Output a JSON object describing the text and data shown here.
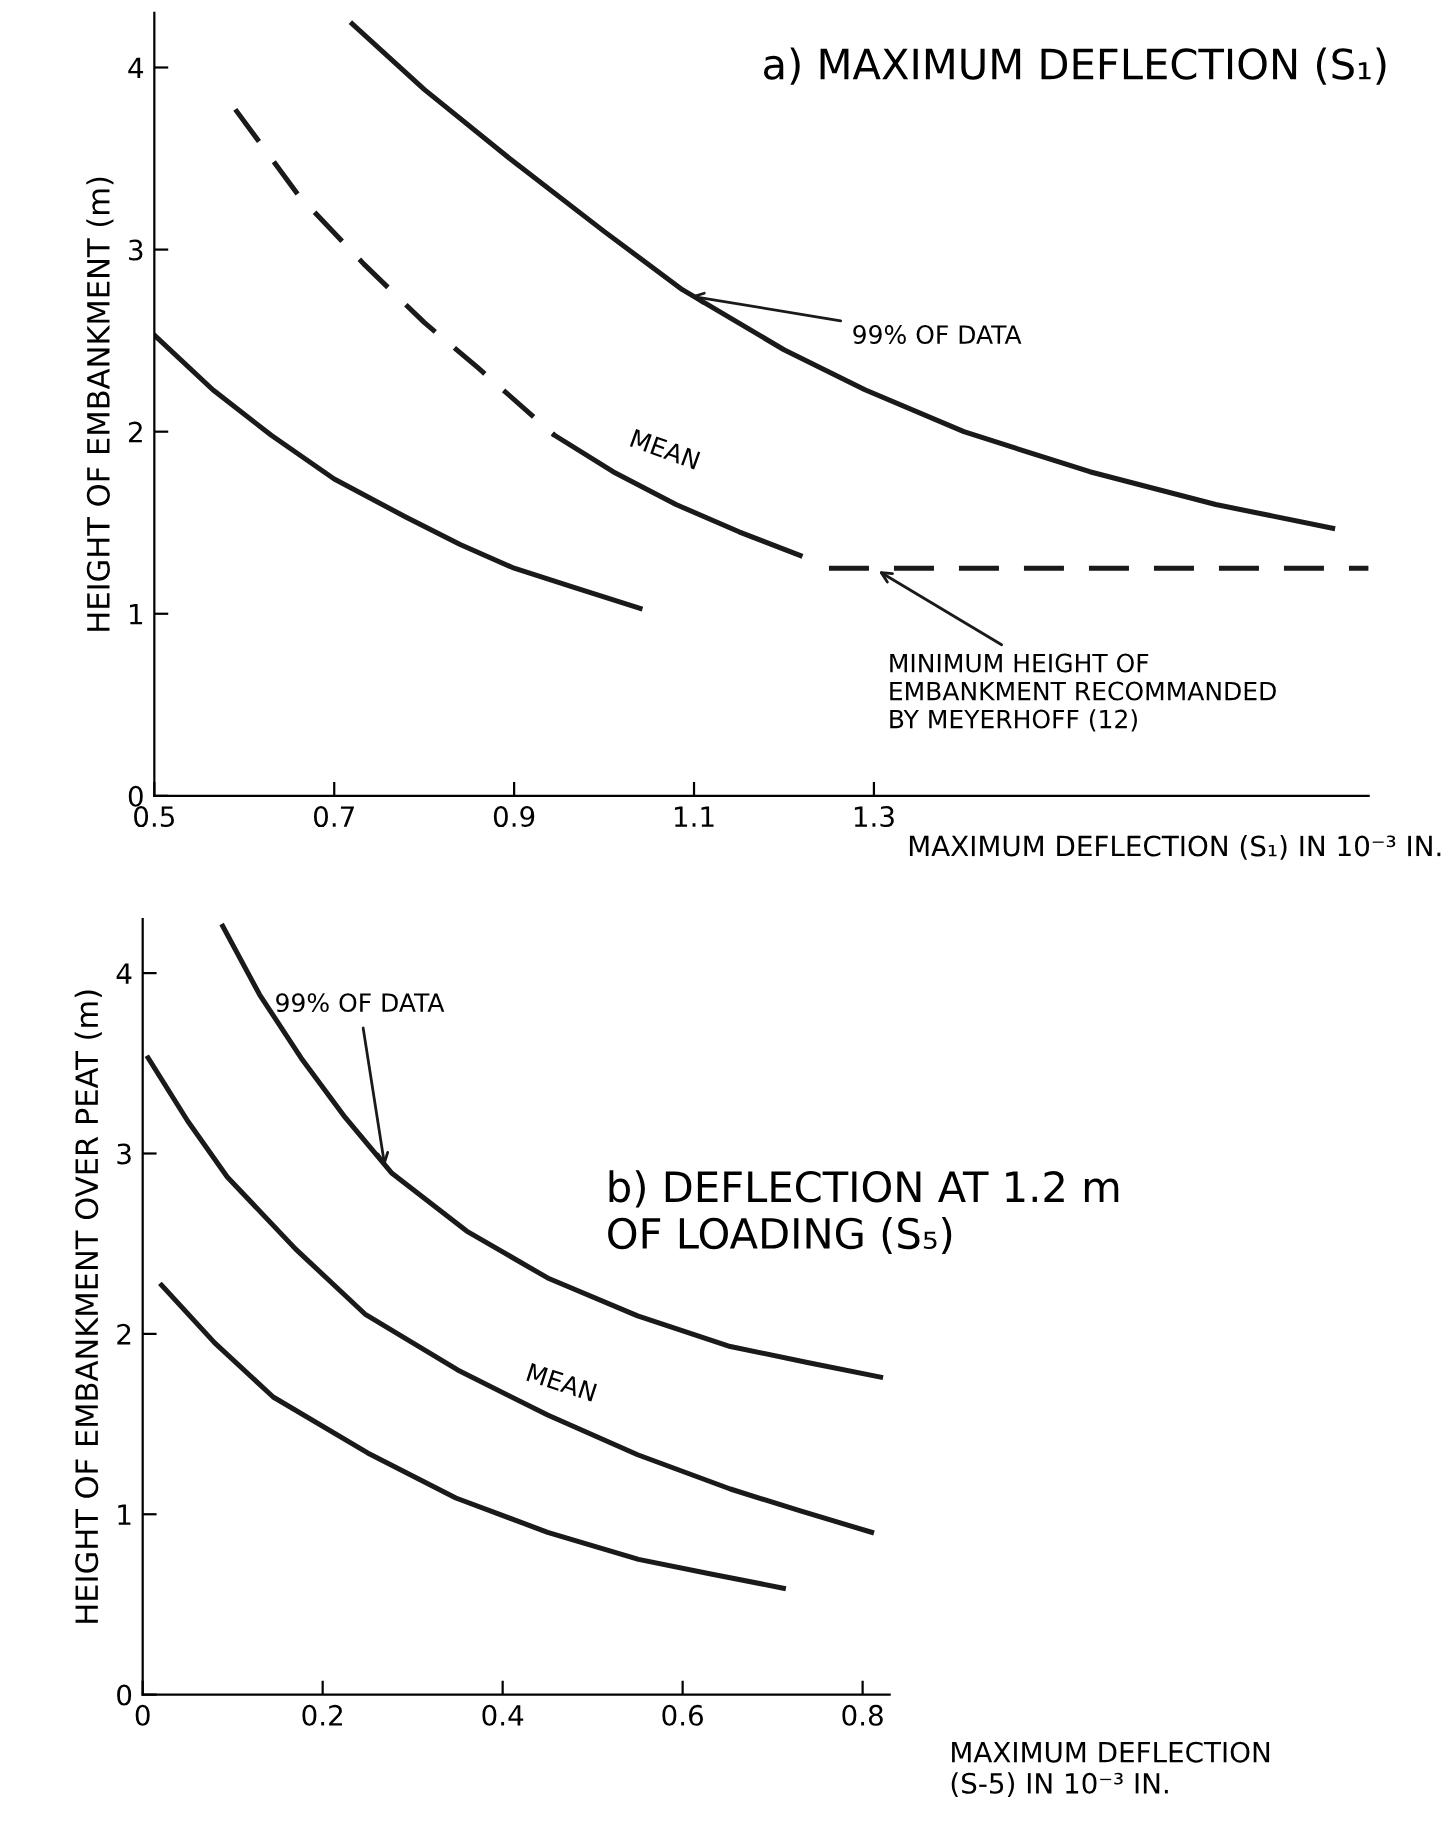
{
  "chart_data": [
    {
      "type": "line",
      "title": "a) MAXIMUM DEFLECTION (S₁)",
      "xlabel": "MAXIMUM DEFLECTION (S₁) IN 10⁻³ IN.",
      "ylabel": "HEIGHT OF EMBANKMENT (m)",
      "xlim": [
        0.5,
        1.85
      ],
      "ylim": [
        0,
        4.3
      ],
      "xticks": [
        0.5,
        0.7,
        0.9,
        1.1,
        1.3
      ],
      "yticks": [
        0,
        1,
        2,
        3,
        4
      ],
      "grid": false,
      "marker": "none",
      "series": [
        {
          "color": "#1a1a1a",
          "line_style": "solid",
          "x": [
            0.72,
            0.8,
            0.895,
            1.0,
            1.087,
            1.2,
            1.29,
            1.4,
            1.54,
            1.68,
            1.81
          ],
          "values": [
            4.24,
            3.88,
            3.5,
            3.1,
            2.78,
            2.45,
            2.23,
            2.0,
            1.78,
            1.6,
            1.47
          ]
        },
        {
          "color": "#1a1a1a",
          "line_style": "dashed",
          "x": [
            0.59,
            0.66,
            0.733,
            0.8,
            0.86,
            0.945
          ],
          "values": [
            3.77,
            3.3,
            2.92,
            2.6,
            2.35,
            1.98
          ]
        },
        {
          "color": "#1a1a1a",
          "line_style": "solid",
          "x": [
            0.945,
            1.01,
            1.08,
            1.15,
            1.218
          ],
          "values": [
            1.98,
            1.78,
            1.6,
            1.45,
            1.32
          ]
        },
        {
          "color": "#1a1a1a",
          "line_style": "solid",
          "x": [
            0.5,
            0.565,
            0.63,
            0.7,
            0.78,
            0.84,
            0.9,
            0.97,
            1.04
          ],
          "values": [
            2.53,
            2.23,
            1.98,
            1.74,
            1.53,
            1.38,
            1.25,
            1.14,
            1.03
          ]
        },
        {
          "color": "#1a1a1a",
          "line_style": "dashed",
          "x": [
            1.25,
            1.85
          ],
          "values": [
            1.25,
            1.25
          ]
        }
      ],
      "annotations": [
        {
          "text": "99% OF DATA",
          "x": 1.09,
          "y": 2.75
        },
        "MEAN",
        {
          "text": "MINIMUM HEIGHT OF\nEMBANKMENT RECOMMANDED\nBY MEYERHOFF (12)",
          "x": 1.3,
          "y": 1.25
        }
      ]
    },
    {
      "type": "line",
      "title": "b) DEFLECTION AT 1.2 m\nOF LOADING (S₅)",
      "xlabel": "MAXIMUM DEFLECTION\n(S-5) IN 10⁻³ IN.",
      "ylabel": "HEIGHT OF EMBANKMENT OVER PEAT (m)",
      "xlim": [
        0,
        0.83
      ],
      "ylim": [
        0,
        4.3
      ],
      "xticks": [
        0,
        0.2,
        0.4,
        0.6,
        0.8
      ],
      "yticks": [
        0,
        1,
        2,
        3,
        4
      ],
      "grid": false,
      "marker": "none",
      "series": [
        {
          "color": "#1a1a1a",
          "line_style": "solid",
          "x": [
            0.089,
            0.13,
            0.176,
            0.225,
            0.277,
            0.36,
            0.45,
            0.55,
            0.653,
            0.74,
            0.82
          ],
          "values": [
            4.26,
            3.88,
            3.53,
            3.2,
            2.89,
            2.57,
            2.31,
            2.1,
            1.93,
            1.84,
            1.76
          ]
        },
        {
          "color": "#1a1a1a",
          "line_style": "solid",
          "x": [
            0.006,
            0.05,
            0.094,
            0.17,
            0.247,
            0.35,
            0.45,
            0.55,
            0.653,
            0.73,
            0.81
          ],
          "values": [
            3.53,
            3.18,
            2.87,
            2.47,
            2.11,
            1.8,
            1.55,
            1.33,
            1.14,
            1.02,
            0.9
          ]
        },
        {
          "color": "#1a1a1a",
          "line_style": "solid",
          "x": [
            0.021,
            0.08,
            0.145,
            0.25,
            0.348,
            0.45,
            0.551,
            0.63,
            0.712
          ],
          "values": [
            2.27,
            1.95,
            1.65,
            1.34,
            1.09,
            0.9,
            0.75,
            0.67,
            0.59
          ]
        }
      ],
      "annotations": [
        {
          "text": "99% OF DATA",
          "x": 0.27,
          "y": 2.9
        },
        "MEAN"
      ]
    }
  ]
}
